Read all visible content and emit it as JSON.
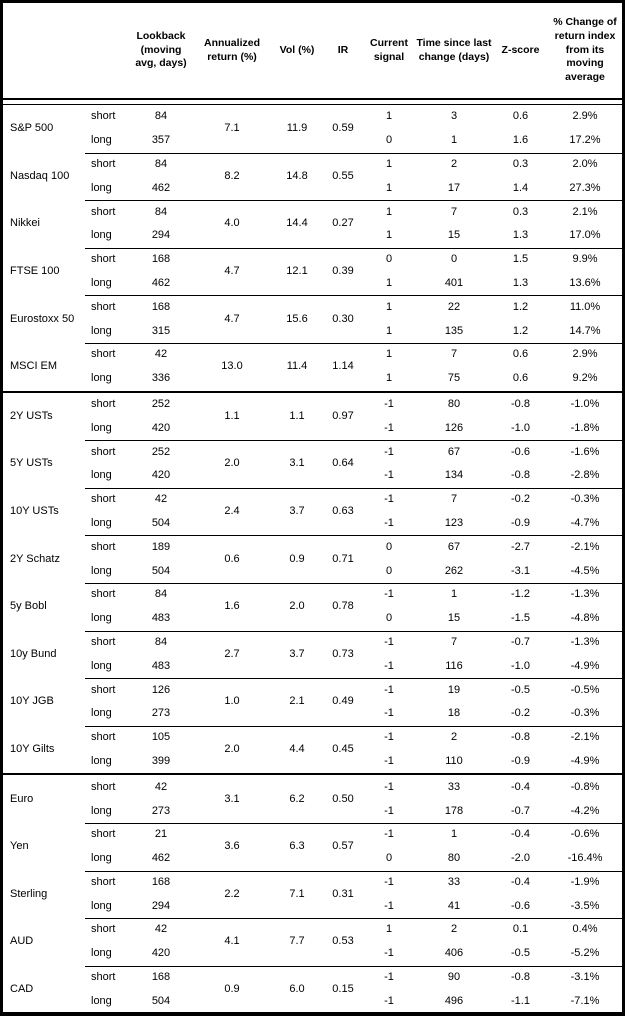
{
  "leg_labels": {
    "short": "short",
    "long": "long"
  },
  "colors": {
    "text": "#000000",
    "border": "#000000",
    "background": "#ffffff"
  },
  "chart_data": {
    "type": "table",
    "columns": [
      "",
      "",
      "Lookback (moving avg, days)",
      "Annualized return (%)",
      "Vol (%)",
      "IR",
      "Current signal",
      "Time since last change (days)",
      "Z-score",
      "% Change of return index from its moving average"
    ],
    "section_sizes": [
      6,
      8,
      5
    ],
    "groups": [
      {
        "asset": "S&P 500",
        "ret": "7.1",
        "vol": "11.9",
        "ir": "0.59",
        "short": {
          "lookback": "84",
          "signal": "1",
          "days": "3",
          "z": "0.6",
          "chg": "2.9%"
        },
        "long": {
          "lookback": "357",
          "signal": "0",
          "days": "1",
          "z": "1.6",
          "chg": "17.2%"
        }
      },
      {
        "asset": "Nasdaq 100",
        "ret": "8.2",
        "vol": "14.8",
        "ir": "0.55",
        "short": {
          "lookback": "84",
          "signal": "1",
          "days": "2",
          "z": "0.3",
          "chg": "2.0%"
        },
        "long": {
          "lookback": "462",
          "signal": "1",
          "days": "17",
          "z": "1.4",
          "chg": "27.3%"
        }
      },
      {
        "asset": "Nikkei",
        "ret": "4.0",
        "vol": "14.4",
        "ir": "0.27",
        "short": {
          "lookback": "84",
          "signal": "1",
          "days": "7",
          "z": "0.3",
          "chg": "2.1%"
        },
        "long": {
          "lookback": "294",
          "signal": "1",
          "days": "15",
          "z": "1.3",
          "chg": "17.0%"
        }
      },
      {
        "asset": "FTSE 100",
        "ret": "4.7",
        "vol": "12.1",
        "ir": "0.39",
        "short": {
          "lookback": "168",
          "signal": "0",
          "days": "0",
          "z": "1.5",
          "chg": "9.9%"
        },
        "long": {
          "lookback": "462",
          "signal": "1",
          "days": "401",
          "z": "1.3",
          "chg": "13.6%"
        }
      },
      {
        "asset": "Eurostoxx 50",
        "ret": "4.7",
        "vol": "15.6",
        "ir": "0.30",
        "short": {
          "lookback": "168",
          "signal": "1",
          "days": "22",
          "z": "1.2",
          "chg": "11.0%"
        },
        "long": {
          "lookback": "315",
          "signal": "1",
          "days": "135",
          "z": "1.2",
          "chg": "14.7%"
        }
      },
      {
        "asset": "MSCI EM",
        "ret": "13.0",
        "vol": "11.4",
        "ir": "1.14",
        "short": {
          "lookback": "42",
          "signal": "1",
          "days": "7",
          "z": "0.6",
          "chg": "2.9%"
        },
        "long": {
          "lookback": "336",
          "signal": "1",
          "days": "75",
          "z": "0.6",
          "chg": "9.2%"
        }
      },
      {
        "asset": "2Y USTs",
        "ret": "1.1",
        "vol": "1.1",
        "ir": "0.97",
        "short": {
          "lookback": "252",
          "signal": "-1",
          "days": "80",
          "z": "-0.8",
          "chg": "-1.0%"
        },
        "long": {
          "lookback": "420",
          "signal": "-1",
          "days": "126",
          "z": "-1.0",
          "chg": "-1.8%"
        }
      },
      {
        "asset": "5Y USTs",
        "ret": "2.0",
        "vol": "3.1",
        "ir": "0.64",
        "short": {
          "lookback": "252",
          "signal": "-1",
          "days": "67",
          "z": "-0.6",
          "chg": "-1.6%"
        },
        "long": {
          "lookback": "420",
          "signal": "-1",
          "days": "134",
          "z": "-0.8",
          "chg": "-2.8%"
        }
      },
      {
        "asset": "10Y USTs",
        "ret": "2.4",
        "vol": "3.7",
        "ir": "0.63",
        "short": {
          "lookback": "42",
          "signal": "-1",
          "days": "7",
          "z": "-0.2",
          "chg": "-0.3%"
        },
        "long": {
          "lookback": "504",
          "signal": "-1",
          "days": "123",
          "z": "-0.9",
          "chg": "-4.7%"
        }
      },
      {
        "asset": "2Y Schatz",
        "ret": "0.6",
        "vol": "0.9",
        "ir": "0.71",
        "short": {
          "lookback": "189",
          "signal": "0",
          "days": "67",
          "z": "-2.7",
          "chg": "-2.1%"
        },
        "long": {
          "lookback": "504",
          "signal": "0",
          "days": "262",
          "z": "-3.1",
          "chg": "-4.5%"
        }
      },
      {
        "asset": "5y Bobl",
        "ret": "1.6",
        "vol": "2.0",
        "ir": "0.78",
        "short": {
          "lookback": "84",
          "signal": "-1",
          "days": "1",
          "z": "-1.2",
          "chg": "-1.3%"
        },
        "long": {
          "lookback": "483",
          "signal": "0",
          "days": "15",
          "z": "-1.5",
          "chg": "-4.8%"
        }
      },
      {
        "asset": "10y Bund",
        "ret": "2.7",
        "vol": "3.7",
        "ir": "0.73",
        "short": {
          "lookback": "84",
          "signal": "-1",
          "days": "7",
          "z": "-0.7",
          "chg": "-1.3%"
        },
        "long": {
          "lookback": "483",
          "signal": "-1",
          "days": "116",
          "z": "-1.0",
          "chg": "-4.9%"
        }
      },
      {
        "asset": "10Y JGB",
        "ret": "1.0",
        "vol": "2.1",
        "ir": "0.49",
        "short": {
          "lookback": "126",
          "signal": "-1",
          "days": "19",
          "z": "-0.5",
          "chg": "-0.5%"
        },
        "long": {
          "lookback": "273",
          "signal": "-1",
          "days": "18",
          "z": "-0.2",
          "chg": "-0.3%"
        }
      },
      {
        "asset": "10Y Gilts",
        "ret": "2.0",
        "vol": "4.4",
        "ir": "0.45",
        "short": {
          "lookback": "105",
          "signal": "-1",
          "days": "2",
          "z": "-0.8",
          "chg": "-2.1%"
        },
        "long": {
          "lookback": "399",
          "signal": "-1",
          "days": "110",
          "z": "-0.9",
          "chg": "-4.9%"
        }
      },
      {
        "asset": "Euro",
        "ret": "3.1",
        "vol": "6.2",
        "ir": "0.50",
        "short": {
          "lookback": "42",
          "signal": "-1",
          "days": "33",
          "z": "-0.4",
          "chg": "-0.8%"
        },
        "long": {
          "lookback": "273",
          "signal": "-1",
          "days": "178",
          "z": "-0.7",
          "chg": "-4.2%"
        }
      },
      {
        "asset": "Yen",
        "ret": "3.6",
        "vol": "6.3",
        "ir": "0.57",
        "short": {
          "lookback": "21",
          "signal": "-1",
          "days": "1",
          "z": "-0.4",
          "chg": "-0.6%"
        },
        "long": {
          "lookback": "462",
          "signal": "0",
          "days": "80",
          "z": "-2.0",
          "chg": "-16.4%"
        }
      },
      {
        "asset": "Sterling",
        "ret": "2.2",
        "vol": "7.1",
        "ir": "0.31",
        "short": {
          "lookback": "168",
          "signal": "-1",
          "days": "33",
          "z": "-0.4",
          "chg": "-1.9%"
        },
        "long": {
          "lookback": "294",
          "signal": "-1",
          "days": "41",
          "z": "-0.6",
          "chg": "-3.5%"
        }
      },
      {
        "asset": "AUD",
        "ret": "4.1",
        "vol": "7.7",
        "ir": "0.53",
        "short": {
          "lookback": "42",
          "signal": "1",
          "days": "2",
          "z": "0.1",
          "chg": "0.4%"
        },
        "long": {
          "lookback": "420",
          "signal": "-1",
          "days": "406",
          "z": "-0.5",
          "chg": "-5.2%"
        }
      },
      {
        "asset": "CAD",
        "ret": "0.9",
        "vol": "6.0",
        "ir": "0.15",
        "short": {
          "lookback": "168",
          "signal": "-1",
          "days": "90",
          "z": "-0.8",
          "chg": "-3.1%"
        },
        "long": {
          "lookback": "504",
          "signal": "-1",
          "days": "496",
          "z": "-1.1",
          "chg": "-7.1%"
        }
      }
    ]
  }
}
